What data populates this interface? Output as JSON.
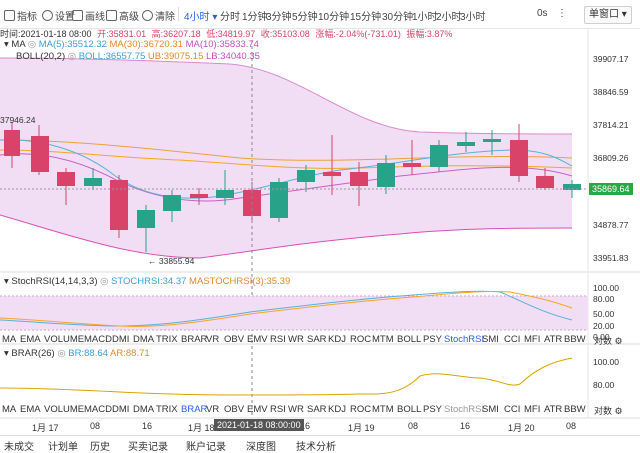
{
  "toolbar": {
    "indicators": "指标",
    "settings": "设置",
    "draw": "画线",
    "advanced": "高级",
    "clear": "清除",
    "interval_selected": "4小时",
    "intervals": [
      "分时",
      "1分钟",
      "3分钟",
      "5分钟",
      "10分钟",
      "15分钟",
      "30分钟",
      "1小时",
      "2小时",
      "3小时"
    ],
    "countdown": "0s",
    "window_mode": "单窗口"
  },
  "ohlc": {
    "time": "时间:2021-01-18 08:00",
    "open": "开:35831.01",
    "high": "高:36207.18",
    "low": "低:34819.97",
    "close": "收:35103.08",
    "change": "涨幅:-2.04%(-731.01)",
    "amplitude": "振幅:3.87%"
  },
  "ma_legend": {
    "name": "MA",
    "ma5": "MA(5):35512.32",
    "ma30": "MA(30):36720.31",
    "ma10": "MA(10):35833.74"
  },
  "boll_legend": {
    "name": "BOLL(20,2)",
    "boll": "BOLL:36557.75",
    "ub": "UB:39075.15",
    "lb": "LB:34040.35"
  },
  "price_axis": [
    "39907.17",
    "38846.59",
    "37814.21",
    "36809.26",
    "35869.64",
    "34878.77",
    "33951.83"
  ],
  "current_price": "35869.64",
  "left_high_label": "37946.24",
  "low_label": "33855.94",
  "stochrsi": {
    "name": "StochRSI(14,14,3,3)",
    "k": "STOCHRSI:34.37",
    "d": "MASTOCHRSI(3):35.39",
    "axis": [
      "100.00",
      "80.00",
      "50.00",
      "20.00",
      "0.00"
    ]
  },
  "brar": {
    "name": "BRAR(26)",
    "br": "BR:88.64",
    "ar": "AR:88.71",
    "axis": [
      "100.00",
      "80.00"
    ]
  },
  "indicator_list": [
    "MA",
    "EMA",
    "VOLUME",
    "MACD",
    "DMI",
    "DMA",
    "TRIX",
    "BRAR",
    "VR",
    "OBV",
    "EMV",
    "RSI",
    "WR",
    "SAR",
    "KDJ",
    "ROC",
    "MTM",
    "BOLL",
    "PSY",
    "StochRSI",
    "SMI",
    "CCI",
    "MFI",
    "ATR",
    "BBW"
  ],
  "indicator_settings": "对数",
  "time_axis": {
    "labels": [
      "1月 17",
      "08",
      "16",
      "1月 18",
      "16",
      "1月 19",
      "08",
      "16",
      "1月 20",
      "08"
    ],
    "crosshair": "2021-01-18 08:00:00"
  },
  "bottom_tabs": [
    "未成交",
    "计划单",
    "历史",
    "买卖记录",
    "账户记录",
    "深度图",
    "技术分析"
  ],
  "colors": {
    "up": "#28a38a",
    "down": "#d9436a",
    "accent": "#2a5ee8"
  }
}
